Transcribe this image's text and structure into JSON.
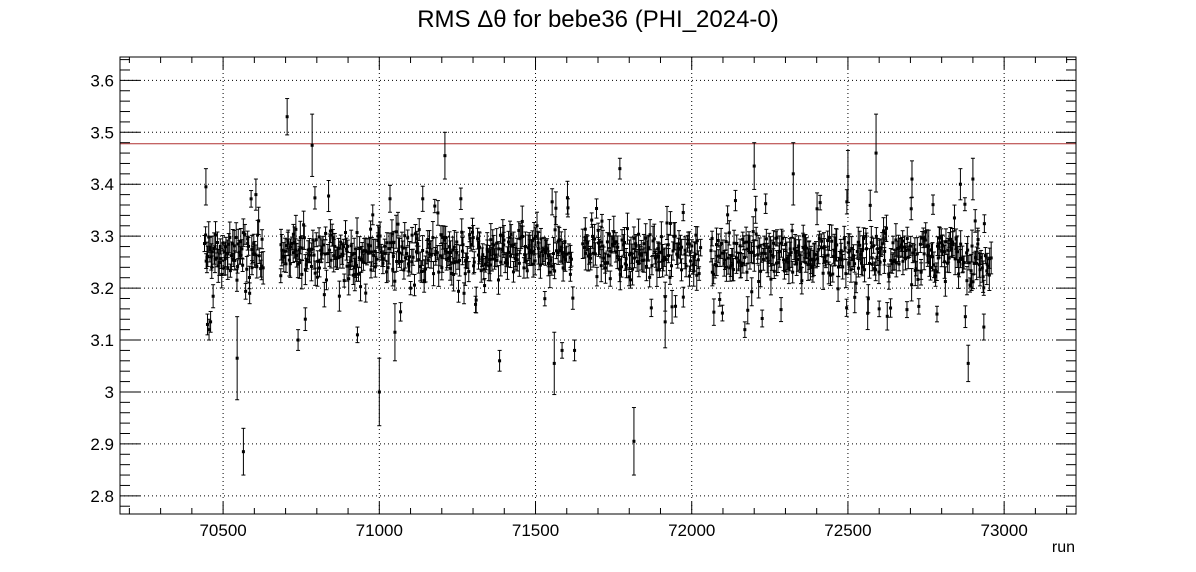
{
  "chart_data": {
    "type": "scatter",
    "title": "RMS Δθ for bebe36 (PHI_2024-0)",
    "xlabel": "run",
    "ylabel": "",
    "xlim": [
      70170,
      73230
    ],
    "ylim": [
      2.765,
      3.645
    ],
    "x_ticks": [
      70500,
      71000,
      71500,
      72000,
      72500,
      73000
    ],
    "x_tick_labels": [
      "70500",
      "71000",
      "71500",
      "72000",
      "72500",
      "73000"
    ],
    "y_ticks": [
      2.8,
      2.9,
      3.0,
      3.1,
      3.2,
      3.3,
      3.4,
      3.5,
      3.6
    ],
    "y_tick_labels": [
      "2.8",
      "2.9",
      "3",
      "3.1",
      "3.2",
      "3.3",
      "3.4",
      "3.5",
      "3.6"
    ],
    "grid": true,
    "reference_line": {
      "y": 3.478,
      "color": "#b03030"
    },
    "series": [
      {
        "marker_color": "#000000",
        "points": [
          {
            "x": 70445,
            "y": 3.395,
            "err": 0.035
          },
          {
            "x": 70450,
            "y": 3.13,
            "err": 0.02
          },
          {
            "x": 70455,
            "y": 3.12,
            "err": 0.02
          },
          {
            "x": 70460,
            "y": 3.135,
            "err": 0.02
          },
          {
            "x": 70465,
            "y": 3.27,
            "err": 0.03
          },
          {
            "x": 70545,
            "y": 3.065,
            "err": 0.08
          },
          {
            "x": 70565,
            "y": 2.885,
            "err": 0.045
          },
          {
            "x": 70585,
            "y": 3.19,
            "err": 0.02
          },
          {
            "x": 70605,
            "y": 3.38,
            "err": 0.03
          },
          {
            "x": 70705,
            "y": 3.53,
            "err": 0.035
          },
          {
            "x": 70740,
            "y": 3.1,
            "err": 0.02
          },
          {
            "x": 70785,
            "y": 3.475,
            "err": 0.06
          },
          {
            "x": 70930,
            "y": 3.11,
            "err": 0.015
          },
          {
            "x": 71000,
            "y": 3.0,
            "err": 0.065
          },
          {
            "x": 71050,
            "y": 3.115,
            "err": 0.055
          },
          {
            "x": 71210,
            "y": 3.455,
            "err": 0.045
          },
          {
            "x": 71385,
            "y": 3.06,
            "err": 0.02
          },
          {
            "x": 71560,
            "y": 3.055,
            "err": 0.06
          },
          {
            "x": 71585,
            "y": 3.08,
            "err": 0.015
          },
          {
            "x": 71625,
            "y": 3.08,
            "err": 0.02
          },
          {
            "x": 71770,
            "y": 3.43,
            "err": 0.02
          },
          {
            "x": 71815,
            "y": 2.905,
            "err": 0.065
          },
          {
            "x": 71915,
            "y": 3.135,
            "err": 0.05
          },
          {
            "x": 72170,
            "y": 3.12,
            "err": 0.015
          },
          {
            "x": 72200,
            "y": 3.435,
            "err": 0.045
          },
          {
            "x": 72325,
            "y": 3.42,
            "err": 0.06
          },
          {
            "x": 72500,
            "y": 3.415,
            "err": 0.05
          },
          {
            "x": 72590,
            "y": 3.46,
            "err": 0.075
          },
          {
            "x": 72600,
            "y": 3.16,
            "err": 0.015
          },
          {
            "x": 72705,
            "y": 3.41,
            "err": 0.035
          },
          {
            "x": 72785,
            "y": 3.15,
            "err": 0.015
          },
          {
            "x": 72885,
            "y": 3.055,
            "err": 0.035
          },
          {
            "x": 72935,
            "y": 3.125,
            "err": 0.025
          },
          {
            "x": 72900,
            "y": 3.41,
            "err": 0.04
          },
          {
            "x": 72860,
            "y": 3.4,
            "err": 0.03
          }
        ],
        "dense_band": {
          "x_range": [
            70440,
            72960
          ],
          "center": 3.265,
          "spread": 0.045,
          "outlier_floor": 3.14,
          "outlier_ceiling": 3.38,
          "count": 900,
          "gaps": [
            [
              70630,
              70680
            ],
            [
              71620,
              71650
            ],
            [
              72030,
              72060
            ]
          ]
        }
      }
    ]
  }
}
